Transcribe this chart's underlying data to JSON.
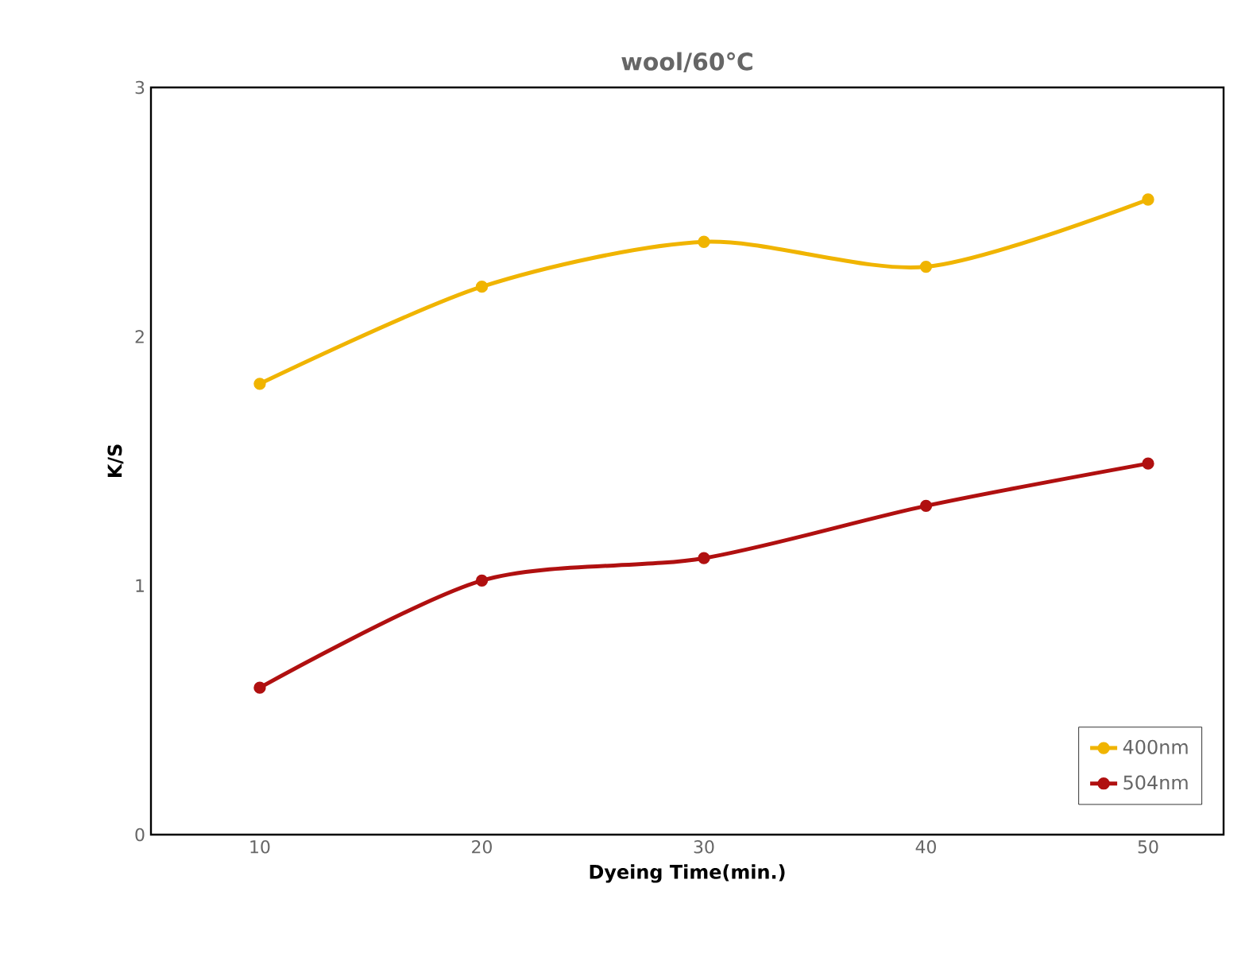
{
  "chart_data": {
    "type": "line",
    "title": "wool/60℃",
    "xlabel": "Dyeing Time(min.)",
    "ylabel": "K/S",
    "x": [
      10,
      20,
      30,
      40,
      50
    ],
    "series": [
      {
        "name": "400nm",
        "color": "#f0b400",
        "values": [
          1.81,
          2.2,
          2.38,
          2.28,
          2.55
        ]
      },
      {
        "name": "504nm",
        "color": "#b01010",
        "values": [
          0.59,
          1.02,
          1.11,
          1.32,
          1.49
        ]
      }
    ],
    "xlim": [
      5.1,
      53.4
    ],
    "xticks": [
      10,
      20,
      30,
      40,
      50
    ],
    "ylim": [
      0,
      3
    ],
    "yticks": [
      0,
      1,
      2,
      3
    ],
    "legend": "bottom right",
    "marker": "circle",
    "line_style": "solid",
    "grid": false
  }
}
